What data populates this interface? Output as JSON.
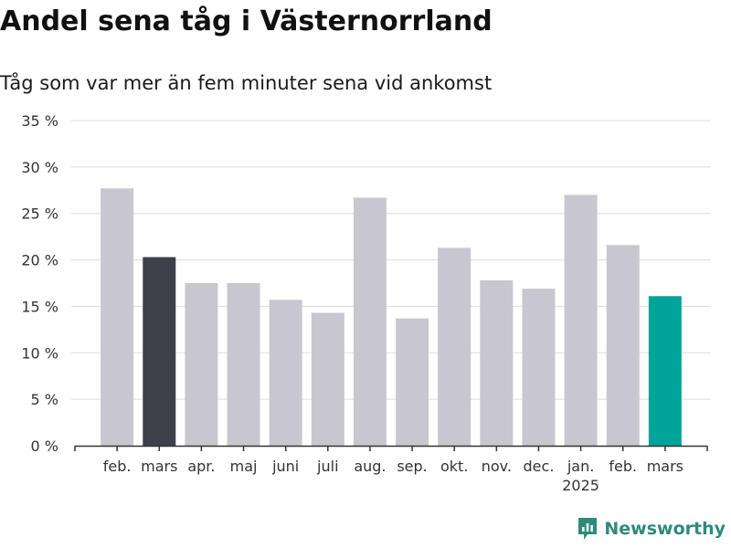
{
  "title": "Andel sena tåg i Västernorrland",
  "subtitle": "Tåg som var mer än fem minuter sena vid ankomst",
  "logo_text": "Newsworthy",
  "colors": {
    "bar": "#c8c7d0",
    "highlight_previous": "#403f4c",
    "highlight_current": "#00a49a",
    "grid": "#dddddd",
    "axis": "#333333"
  },
  "chart_data": {
    "type": "bar",
    "categories": [
      "feb.",
      "mars",
      "apr.",
      "maj",
      "juni",
      "juli",
      "aug.",
      "sep.",
      "okt.",
      "nov.",
      "dec.",
      "jan.",
      "feb.",
      "mars"
    ],
    "year_labels": [
      "",
      "",
      "",
      "",
      "",
      "",
      "",
      "",
      "",
      "",
      "",
      "2025",
      "",
      ""
    ],
    "values": [
      27.7,
      20.3,
      17.5,
      17.5,
      15.7,
      14.3,
      26.7,
      13.7,
      21.3,
      17.8,
      16.9,
      27.0,
      21.6,
      16.1
    ],
    "highlight": [
      "",
      "previous",
      "",
      "",
      "",
      "",
      "",
      "",
      "",
      "",
      "",
      "",
      "",
      "current"
    ],
    "y_ticks": [
      "0 %",
      "5 %",
      "10 %",
      "15 %",
      "20 %",
      "25 %",
      "30 %",
      "35 %"
    ],
    "ylim": [
      0,
      35
    ],
    "grid": true
  }
}
